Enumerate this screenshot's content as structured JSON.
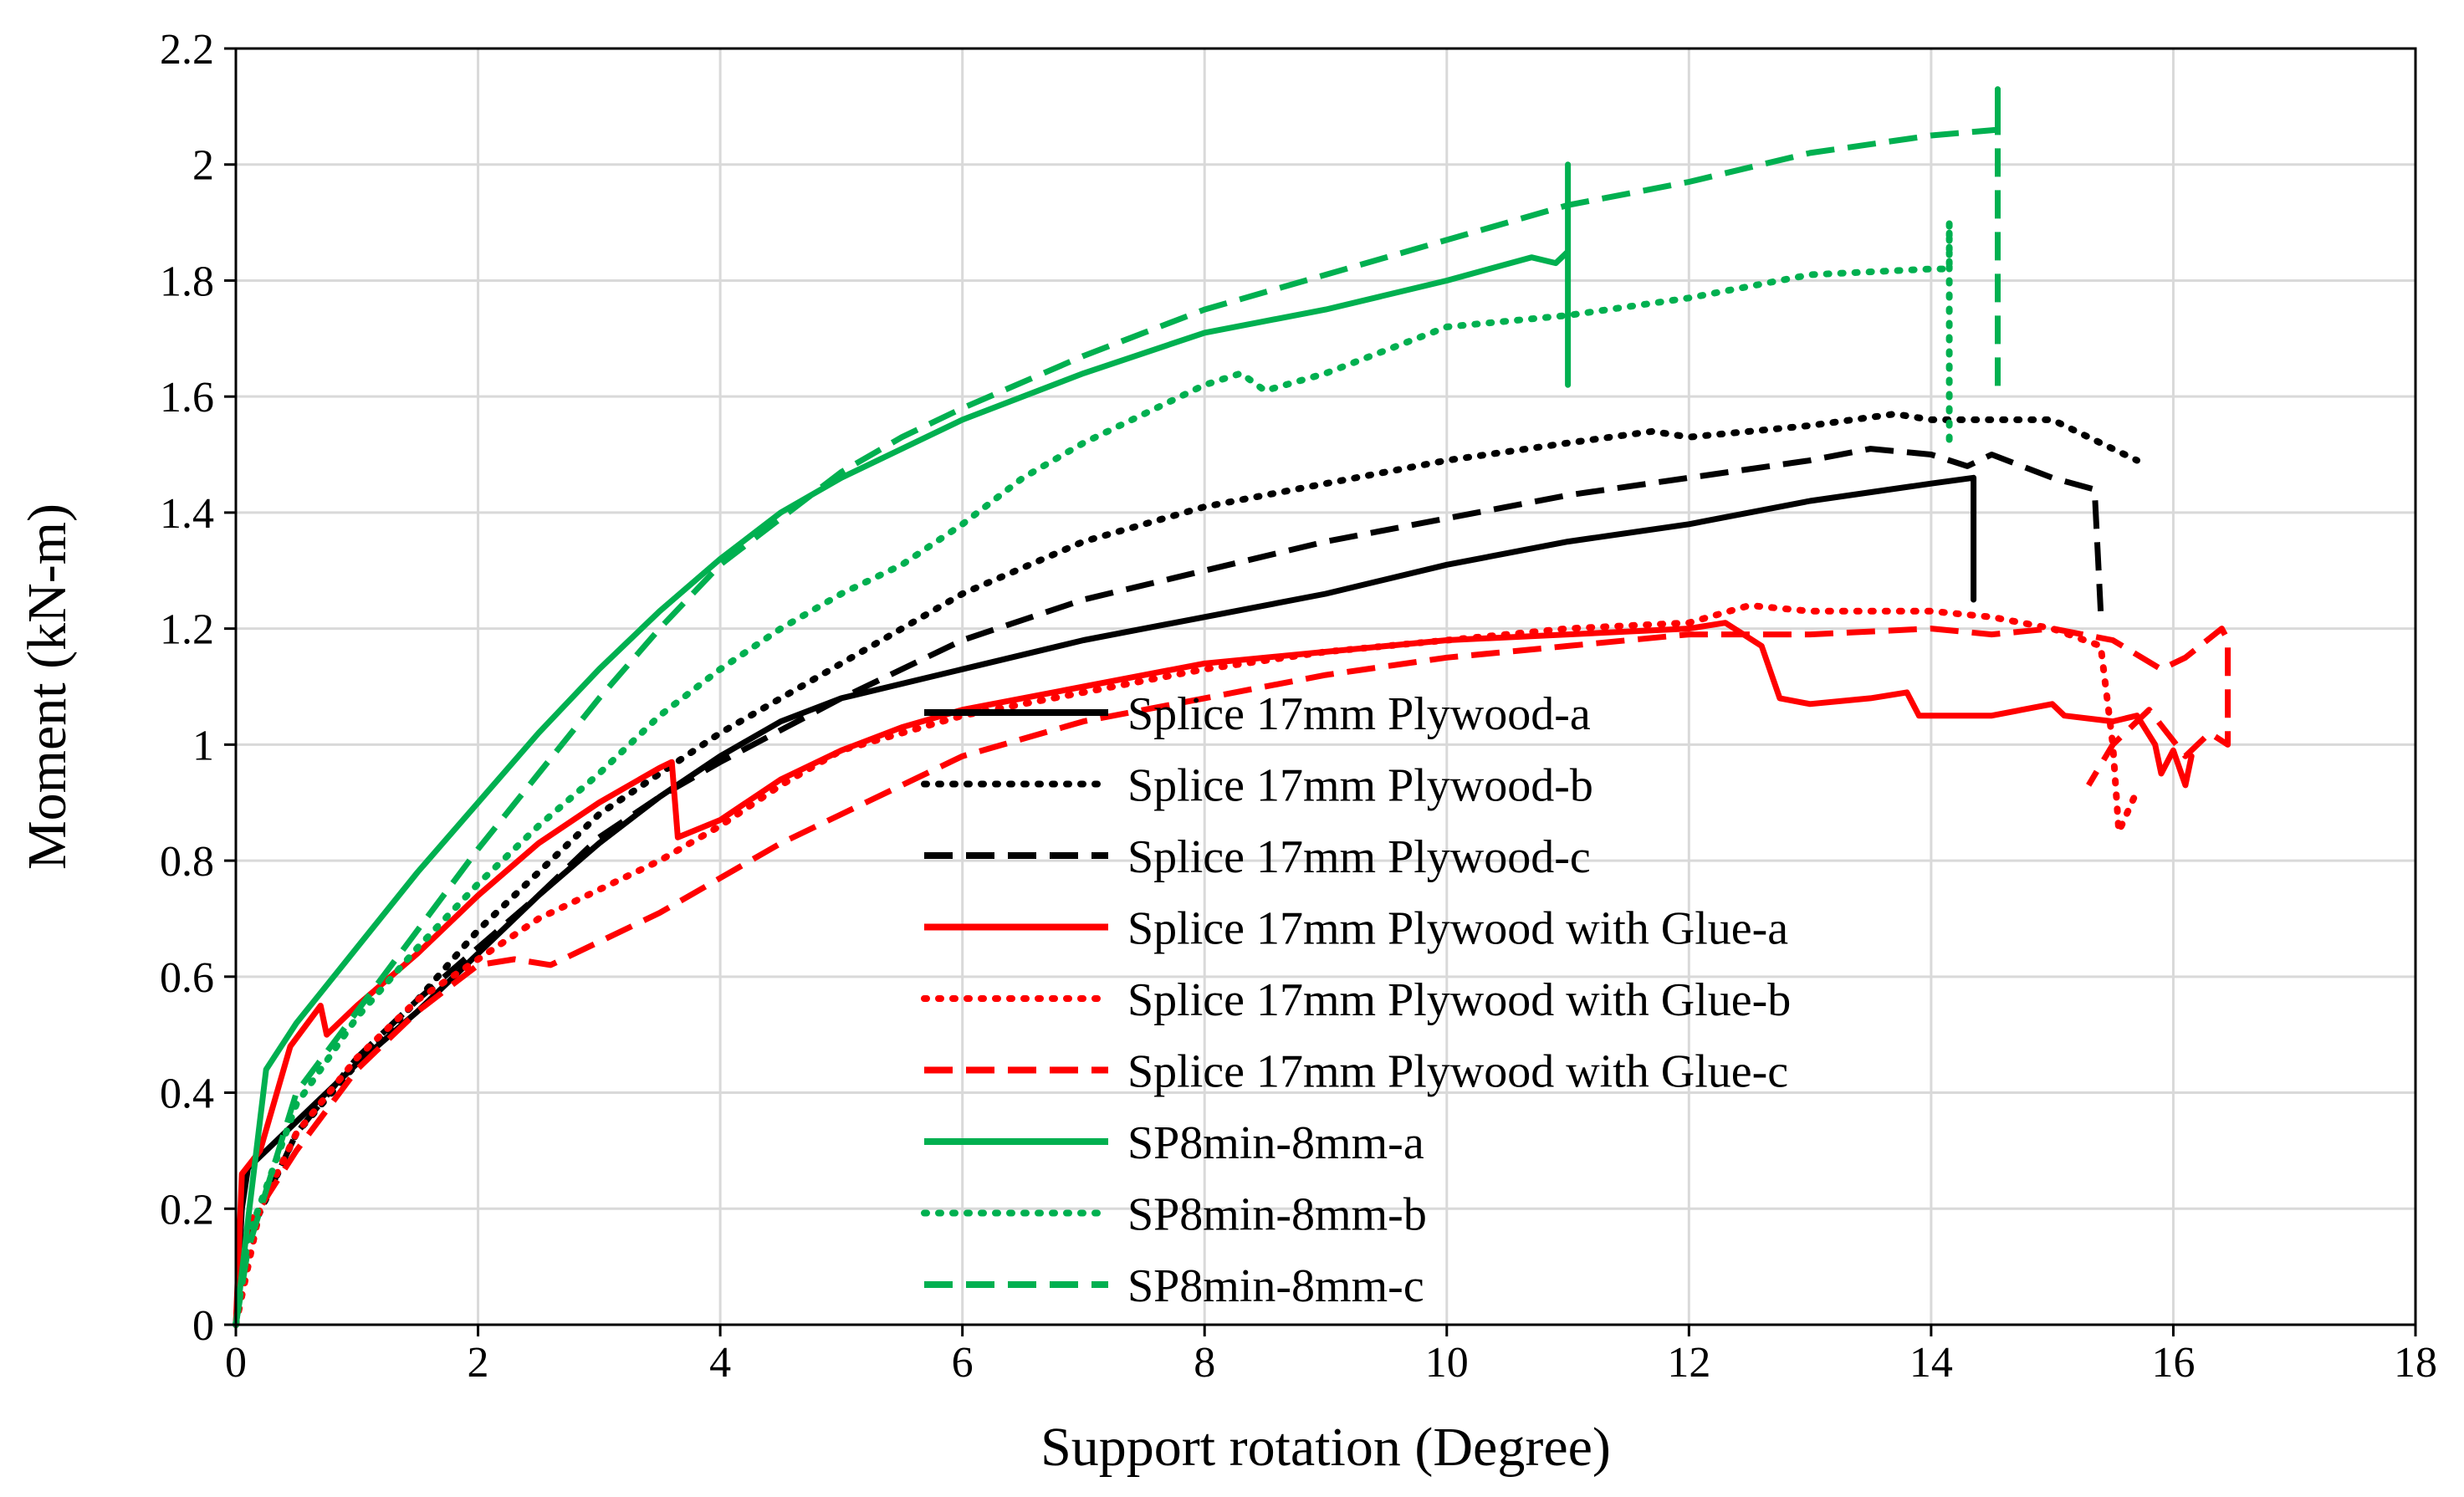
{
  "chart_data": {
    "type": "line",
    "title": "",
    "xlabel": "Support rotation (Degree)",
    "ylabel": "Moment (kN-m)",
    "xlim": [
      0,
      18
    ],
    "ylim": [
      0,
      2.2
    ],
    "xticks": [
      0,
      2,
      4,
      6,
      8,
      10,
      12,
      14,
      16,
      18
    ],
    "yticks": [
      0,
      0.2,
      0.4,
      0.6,
      0.8,
      1,
      1.2,
      1.4,
      1.6,
      1.8,
      2,
      2.2
    ],
    "xtick_labels": [
      "0",
      "2",
      "4",
      "6",
      "8",
      "10",
      "12",
      "14",
      "16",
      "18"
    ],
    "ytick_labels": [
      "0",
      "0.2",
      "0.4",
      "0.6",
      "0.8",
      "1",
      "1.2",
      "1.4",
      "1.6",
      "1.8",
      "2",
      "2.2"
    ],
    "grid": true,
    "legend_position": "center",
    "series": [
      {
        "name": "Splice 17mm Plywood-a",
        "color": "#000000",
        "style": "solid",
        "points": [
          [
            0,
            0
          ],
          [
            0.05,
            0.2
          ],
          [
            0.1,
            0.27
          ],
          [
            0.5,
            0.35
          ],
          [
            1,
            0.45
          ],
          [
            1.5,
            0.54
          ],
          [
            2,
            0.64
          ],
          [
            2.5,
            0.74
          ],
          [
            3,
            0.83
          ],
          [
            3.5,
            0.91
          ],
          [
            4,
            0.98
          ],
          [
            4.5,
            1.04
          ],
          [
            5,
            1.08
          ],
          [
            6,
            1.13
          ],
          [
            7,
            1.18
          ],
          [
            8,
            1.22
          ],
          [
            9,
            1.26
          ],
          [
            10,
            1.31
          ],
          [
            11,
            1.35
          ],
          [
            12,
            1.38
          ],
          [
            13,
            1.42
          ],
          [
            14,
            1.45
          ],
          [
            14.35,
            1.46
          ],
          [
            14.35,
            1.25
          ]
        ]
      },
      {
        "name": "Splice 17mm Plywood-b",
        "color": "#000000",
        "style": "dotted",
        "points": [
          [
            0,
            0
          ],
          [
            0.1,
            0.15
          ],
          [
            0.5,
            0.33
          ],
          [
            1,
            0.45
          ],
          [
            1.5,
            0.56
          ],
          [
            2,
            0.68
          ],
          [
            2.5,
            0.78
          ],
          [
            3,
            0.88
          ],
          [
            3.5,
            0.95
          ],
          [
            4,
            1.02
          ],
          [
            5,
            1.14
          ],
          [
            6,
            1.26
          ],
          [
            7,
            1.35
          ],
          [
            8,
            1.41
          ],
          [
            9,
            1.45
          ],
          [
            10,
            1.49
          ],
          [
            11,
            1.52
          ],
          [
            11.7,
            1.54
          ],
          [
            12,
            1.53
          ],
          [
            13,
            1.55
          ],
          [
            13.7,
            1.57
          ],
          [
            14,
            1.56
          ],
          [
            15,
            1.56
          ],
          [
            15.4,
            1.52
          ],
          [
            15.7,
            1.49
          ]
        ]
      },
      {
        "name": "Splice 17mm Plywood-c",
        "color": "#000000",
        "style": "dashed",
        "points": [
          [
            0,
            0
          ],
          [
            0.1,
            0.15
          ],
          [
            0.5,
            0.33
          ],
          [
            1,
            0.46
          ],
          [
            1.5,
            0.56
          ],
          [
            2,
            0.65
          ],
          [
            2.5,
            0.74
          ],
          [
            3,
            0.84
          ],
          [
            3.5,
            0.91
          ],
          [
            4,
            0.97
          ],
          [
            5,
            1.08
          ],
          [
            6,
            1.18
          ],
          [
            7,
            1.25
          ],
          [
            8,
            1.3
          ],
          [
            9,
            1.35
          ],
          [
            10,
            1.39
          ],
          [
            11,
            1.43
          ],
          [
            12,
            1.46
          ],
          [
            13,
            1.49
          ],
          [
            13.5,
            1.51
          ],
          [
            14,
            1.5
          ],
          [
            14.3,
            1.48
          ],
          [
            14.5,
            1.5
          ],
          [
            15,
            1.46
          ],
          [
            15.35,
            1.44
          ],
          [
            15.4,
            1.23
          ]
        ]
      },
      {
        "name": "Splice 17mm Plywood with Glue-a",
        "color": "#ff0000",
        "style": "solid",
        "points": [
          [
            0,
            0
          ],
          [
            0.05,
            0.26
          ],
          [
            0.2,
            0.3
          ],
          [
            0.45,
            0.48
          ],
          [
            0.7,
            0.55
          ],
          [
            0.75,
            0.5
          ],
          [
            1,
            0.55
          ],
          [
            1.5,
            0.64
          ],
          [
            2,
            0.74
          ],
          [
            2.5,
            0.83
          ],
          [
            3,
            0.9
          ],
          [
            3.5,
            0.96
          ],
          [
            3.6,
            0.97
          ],
          [
            3.65,
            0.84
          ],
          [
            4,
            0.87
          ],
          [
            4.5,
            0.94
          ],
          [
            5,
            0.99
          ],
          [
            5.5,
            1.03
          ],
          [
            6,
            1.06
          ],
          [
            7,
            1.1
          ],
          [
            8,
            1.14
          ],
          [
            9,
            1.16
          ],
          [
            10,
            1.18
          ],
          [
            11,
            1.19
          ],
          [
            12,
            1.2
          ],
          [
            12.3,
            1.21
          ],
          [
            12.6,
            1.17
          ],
          [
            12.75,
            1.08
          ],
          [
            13,
            1.07
          ],
          [
            13.5,
            1.08
          ],
          [
            13.8,
            1.09
          ],
          [
            13.9,
            1.05
          ],
          [
            14.5,
            1.05
          ],
          [
            15,
            1.07
          ],
          [
            15.1,
            1.05
          ],
          [
            15.5,
            1.04
          ],
          [
            15.7,
            1.05
          ],
          [
            15.85,
            1.0
          ],
          [
            15.9,
            0.95
          ],
          [
            16,
            0.99
          ],
          [
            16.1,
            0.93
          ],
          [
            16.15,
            0.98
          ]
        ]
      },
      {
        "name": "Splice 17mm Plywood with Glue-b",
        "color": "#ff0000",
        "style": "dotted",
        "points": [
          [
            0,
            0
          ],
          [
            0.2,
            0.2
          ],
          [
            0.5,
            0.33
          ],
          [
            1,
            0.46
          ],
          [
            1.5,
            0.56
          ],
          [
            2,
            0.63
          ],
          [
            2.5,
            0.7
          ],
          [
            3,
            0.75
          ],
          [
            3.5,
            0.8
          ],
          [
            4,
            0.86
          ],
          [
            4.5,
            0.93
          ],
          [
            5,
            0.99
          ],
          [
            6,
            1.05
          ],
          [
            7,
            1.09
          ],
          [
            8,
            1.13
          ],
          [
            9,
            1.16
          ],
          [
            10,
            1.18
          ],
          [
            11,
            1.2
          ],
          [
            12,
            1.21
          ],
          [
            12.5,
            1.24
          ],
          [
            13,
            1.23
          ],
          [
            14,
            1.23
          ],
          [
            14.5,
            1.22
          ],
          [
            15,
            1.2
          ],
          [
            15.4,
            1.17
          ],
          [
            15.5,
            1.0
          ],
          [
            15.55,
            0.85
          ],
          [
            15.7,
            0.92
          ]
        ]
      },
      {
        "name": "Splice 17mm Plywood with Glue-c",
        "color": "#ff0000",
        "style": "dashed",
        "points": [
          [
            0,
            0
          ],
          [
            0.1,
            0.17
          ],
          [
            0.5,
            0.3
          ],
          [
            1,
            0.44
          ],
          [
            1.5,
            0.54
          ],
          [
            2,
            0.62
          ],
          [
            2.3,
            0.63
          ],
          [
            2.6,
            0.62
          ],
          [
            3,
            0.66
          ],
          [
            3.5,
            0.71
          ],
          [
            4,
            0.77
          ],
          [
            4.5,
            0.83
          ],
          [
            5,
            0.88
          ],
          [
            5.5,
            0.93
          ],
          [
            6,
            0.98
          ],
          [
            6.5,
            1.01
          ],
          [
            7,
            1.04
          ],
          [
            8,
            1.08
          ],
          [
            9,
            1.12
          ],
          [
            10,
            1.15
          ],
          [
            11,
            1.17
          ],
          [
            12,
            1.19
          ],
          [
            13,
            1.19
          ],
          [
            14,
            1.2
          ],
          [
            14.5,
            1.19
          ],
          [
            15,
            1.2
          ],
          [
            15.5,
            1.18
          ],
          [
            15.9,
            1.13
          ],
          [
            16.1,
            1.15
          ],
          [
            16.4,
            1.2
          ],
          [
            16.45,
            1.18
          ],
          [
            16.45,
            1.0
          ],
          [
            16.3,
            1.02
          ],
          [
            16.1,
            0.98
          ],
          [
            15.8,
            1.06
          ],
          [
            15.5,
            1.0
          ],
          [
            15.3,
            0.93
          ]
        ]
      },
      {
        "name": "SP8min-8mm-a",
        "color": "#00b050",
        "style": "solid",
        "points": [
          [
            0,
            0
          ],
          [
            0.1,
            0.18
          ],
          [
            0.25,
            0.44
          ],
          [
            0.5,
            0.52
          ],
          [
            1,
            0.65
          ],
          [
            1.5,
            0.78
          ],
          [
            2,
            0.9
          ],
          [
            2.5,
            1.02
          ],
          [
            3,
            1.13
          ],
          [
            3.5,
            1.23
          ],
          [
            4,
            1.32
          ],
          [
            4.5,
            1.4
          ],
          [
            5,
            1.46
          ],
          [
            5.5,
            1.51
          ],
          [
            6,
            1.56
          ],
          [
            7,
            1.64
          ],
          [
            8,
            1.71
          ],
          [
            9,
            1.75
          ],
          [
            10,
            1.8
          ],
          [
            10.7,
            1.84
          ],
          [
            10.9,
            1.83
          ],
          [
            11,
            1.85
          ],
          [
            11,
            2.0
          ],
          [
            11,
            1.62
          ]
        ]
      },
      {
        "name": "SP8min-8mm-b",
        "color": "#00b050",
        "style": "dotted",
        "points": [
          [
            0,
            0
          ],
          [
            0.1,
            0.15
          ],
          [
            0.5,
            0.38
          ],
          [
            1,
            0.53
          ],
          [
            1.5,
            0.65
          ],
          [
            2,
            0.76
          ],
          [
            2.5,
            0.86
          ],
          [
            3,
            0.95
          ],
          [
            3.5,
            1.05
          ],
          [
            4,
            1.13
          ],
          [
            4.5,
            1.2
          ],
          [
            5,
            1.26
          ],
          [
            5.5,
            1.31
          ],
          [
            6,
            1.38
          ],
          [
            6.5,
            1.46
          ],
          [
            7,
            1.52
          ],
          [
            7.5,
            1.57
          ],
          [
            8,
            1.62
          ],
          [
            8.3,
            1.64
          ],
          [
            8.5,
            1.61
          ],
          [
            9,
            1.64
          ],
          [
            10,
            1.72
          ],
          [
            11,
            1.74
          ],
          [
            12,
            1.77
          ],
          [
            13,
            1.81
          ],
          [
            14,
            1.82
          ],
          [
            14.15,
            1.82
          ],
          [
            14.15,
            1.9
          ],
          [
            14.15,
            1.52
          ]
        ]
      },
      {
        "name": "SP8min-8mm-c",
        "color": "#00b050",
        "style": "dashed",
        "points": [
          [
            0,
            0
          ],
          [
            0.1,
            0.13
          ],
          [
            0.5,
            0.4
          ],
          [
            1,
            0.54
          ],
          [
            1.5,
            0.68
          ],
          [
            2,
            0.82
          ],
          [
            2.5,
            0.95
          ],
          [
            3,
            1.08
          ],
          [
            3.5,
            1.2
          ],
          [
            4,
            1.31
          ],
          [
            4.5,
            1.39
          ],
          [
            5,
            1.47
          ],
          [
            5.5,
            1.53
          ],
          [
            6,
            1.58
          ],
          [
            7,
            1.67
          ],
          [
            8,
            1.75
          ],
          [
            9,
            1.81
          ],
          [
            10,
            1.87
          ],
          [
            11,
            1.93
          ],
          [
            12,
            1.97
          ],
          [
            13,
            2.02
          ],
          [
            14,
            2.05
          ],
          [
            14.55,
            2.06
          ],
          [
            14.55,
            2.13
          ],
          [
            14.55,
            1.6
          ]
        ]
      }
    ]
  }
}
